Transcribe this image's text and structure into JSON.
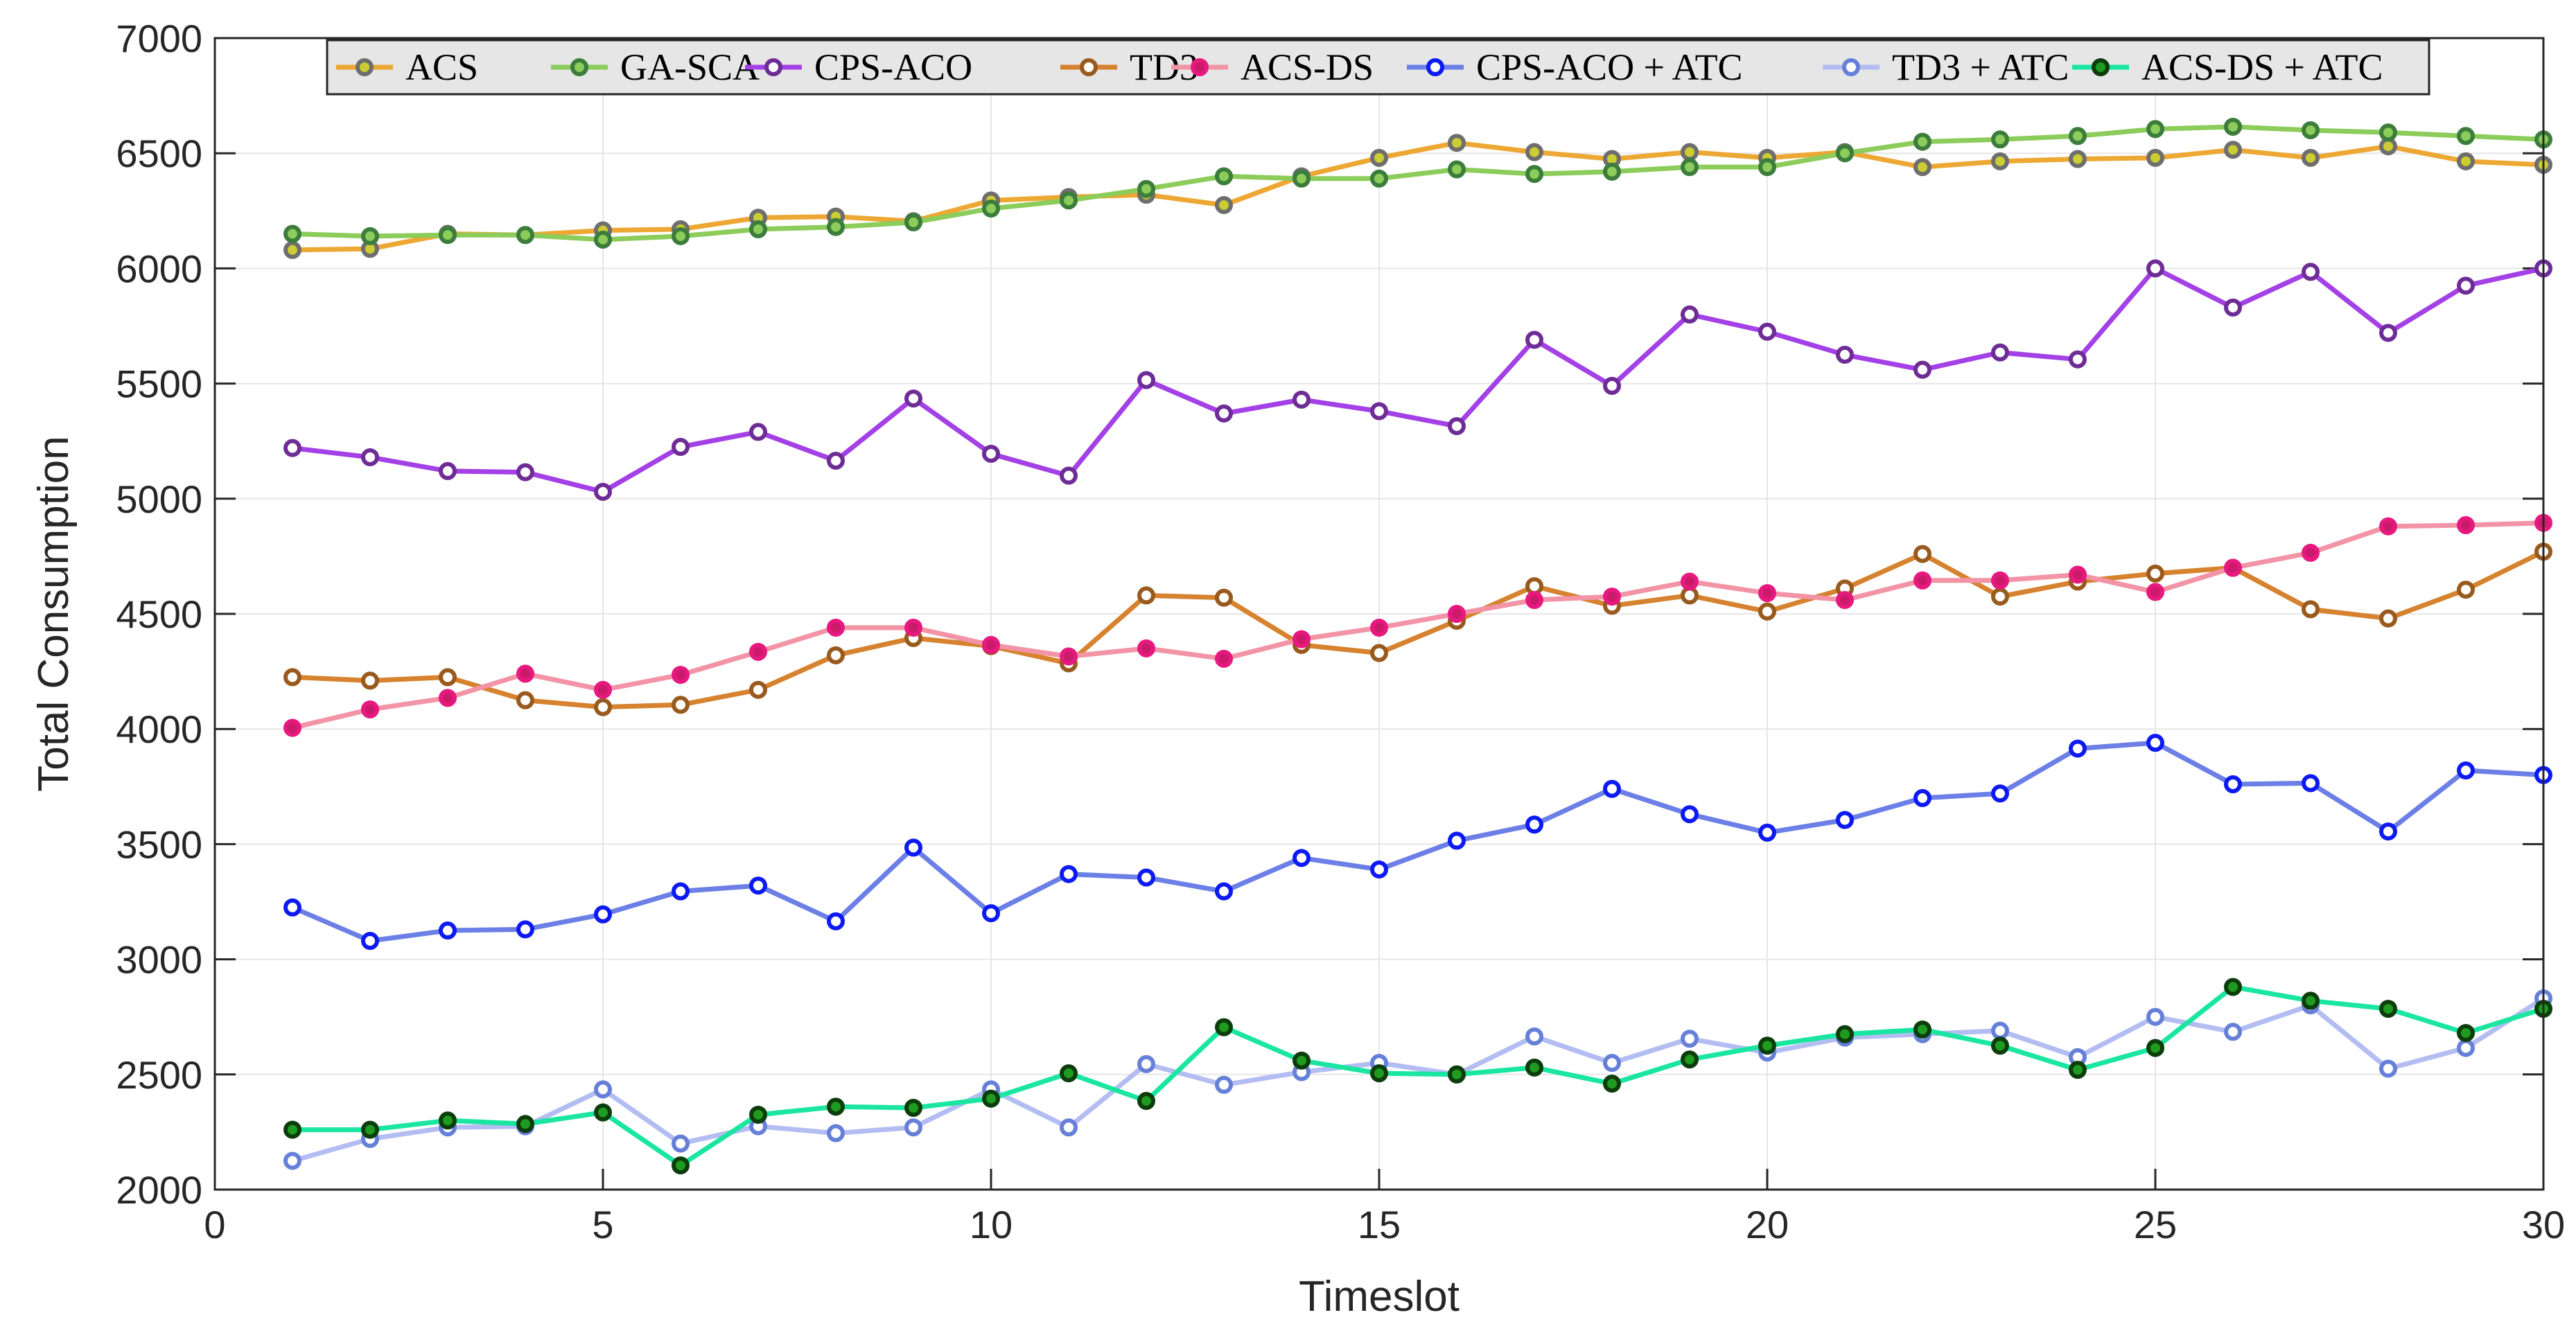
{
  "chart_data": {
    "type": "line",
    "title": "",
    "xlabel": "Timeslot",
    "ylabel": "Total Consumption",
    "xlim": [
      0,
      30
    ],
    "ylim": [
      2000,
      7000
    ],
    "xticks": [
      0,
      5,
      10,
      15,
      20,
      25,
      30
    ],
    "yticks": [
      2000,
      2500,
      3000,
      3500,
      4000,
      4500,
      5000,
      5500,
      6000,
      6500,
      7000
    ],
    "grid": true,
    "legend_position": "top, single row",
    "x": [
      1,
      2,
      3,
      4,
      5,
      6,
      7,
      8,
      9,
      10,
      11,
      12,
      13,
      14,
      15,
      16,
      17,
      18,
      19,
      20,
      21,
      22,
      23,
      24,
      25,
      26,
      27,
      28,
      29,
      30
    ],
    "series": [
      {
        "name": "ACS",
        "line_color": "#eda733",
        "marker_edge": "#6e6e6e",
        "marker_fill": "#cccc33",
        "values": [
          6080,
          6085,
          6150,
          6145,
          6165,
          6170,
          6220,
          6225,
          6205,
          6295,
          6310,
          6320,
          6275,
          6400,
          6480,
          6545,
          6505,
          6475,
          6505,
          6480,
          6505,
          6440,
          6465,
          6475,
          6480,
          6515,
          6480,
          6530,
          6465,
          6450
        ]
      },
      {
        "name": "GA-SCA",
        "line_color": "#8ccc5a",
        "marker_edge": "#3c7d3c",
        "marker_fill": "#8ccc5a",
        "values": [
          6150,
          6140,
          6145,
          6145,
          6125,
          6140,
          6170,
          6180,
          6200,
          6260,
          6295,
          6345,
          6400,
          6390,
          6390,
          6430,
          6410,
          6420,
          6440,
          6440,
          6500,
          6550,
          6560,
          6575,
          6605,
          6615,
          6600,
          6590,
          6575,
          6560
        ]
      },
      {
        "name": "CPS-ACO",
        "line_color": "#a340e6",
        "marker_edge": "#6e2d96",
        "marker_fill": "#ffffff",
        "values": [
          5220,
          5180,
          5120,
          5115,
          5030,
          5225,
          5290,
          5165,
          5435,
          5195,
          5100,
          5515,
          5370,
          5430,
          5380,
          5315,
          5690,
          5490,
          5800,
          5725,
          5625,
          5560,
          5635,
          5605,
          6000,
          5830,
          5985,
          5720,
          5925,
          6000
        ]
      },
      {
        "name": "TD3",
        "line_color": "#d6822e",
        "marker_edge": "#995a1e",
        "marker_fill": "#ffffff",
        "values": [
          4225,
          4210,
          4225,
          4125,
          4095,
          4105,
          4170,
          4320,
          4395,
          4360,
          4285,
          4580,
          4570,
          4365,
          4330,
          4470,
          4620,
          4535,
          4580,
          4510,
          4610,
          4760,
          4575,
          4640,
          4675,
          4700,
          4520,
          4480,
          4605,
          4770
        ]
      },
      {
        "name": "ACS-DS",
        "line_color": "#f294a6",
        "marker_edge": "#e6197f",
        "marker_fill": "#cc1a6b",
        "values": [
          4005,
          4085,
          4135,
          4240,
          4170,
          4235,
          4335,
          4440,
          4440,
          4365,
          4315,
          4350,
          4305,
          4390,
          4440,
          4500,
          4560,
          4575,
          4640,
          4590,
          4560,
          4645,
          4645,
          4670,
          4595,
          4700,
          4765,
          4880,
          4885,
          4895
        ]
      },
      {
        "name": "CPS-ACO + ATC",
        "line_color": "#6b7fe6",
        "marker_edge": "#0d1af2",
        "marker_fill": "#ffffff",
        "values": [
          3225,
          3080,
          3125,
          3130,
          3195,
          3295,
          3320,
          3165,
          3485,
          3200,
          3370,
          3355,
          3295,
          3440,
          3390,
          3515,
          3585,
          3740,
          3630,
          3550,
          3605,
          3700,
          3720,
          3915,
          3940,
          3760,
          3765,
          3555,
          3820,
          3800
        ]
      },
      {
        "name": "TD3 + ATC",
        "line_color": "#b3bdf2",
        "marker_edge": "#6680d9",
        "marker_fill": "#ffffff",
        "values": [
          2125,
          2220,
          2270,
          2275,
          2435,
          2200,
          2275,
          2245,
          2270,
          2435,
          2270,
          2545,
          2455,
          2510,
          2550,
          2500,
          2665,
          2550,
          2655,
          2595,
          2660,
          2675,
          2690,
          2575,
          2750,
          2685,
          2800,
          2525,
          2615,
          2830
        ]
      },
      {
        "name": "ACS-DS + ATC",
        "line_color": "#1ae6a1",
        "marker_edge": "#0d3d0d",
        "marker_fill": "#1f9c1f",
        "values": [
          2260,
          2260,
          2300,
          2285,
          2335,
          2105,
          2325,
          2360,
          2355,
          2395,
          2505,
          2385,
          2705,
          2560,
          2505,
          2500,
          2530,
          2460,
          2565,
          2625,
          2675,
          2695,
          2625,
          2520,
          2615,
          2880,
          2820,
          2785,
          2680,
          2785
        ]
      }
    ]
  }
}
